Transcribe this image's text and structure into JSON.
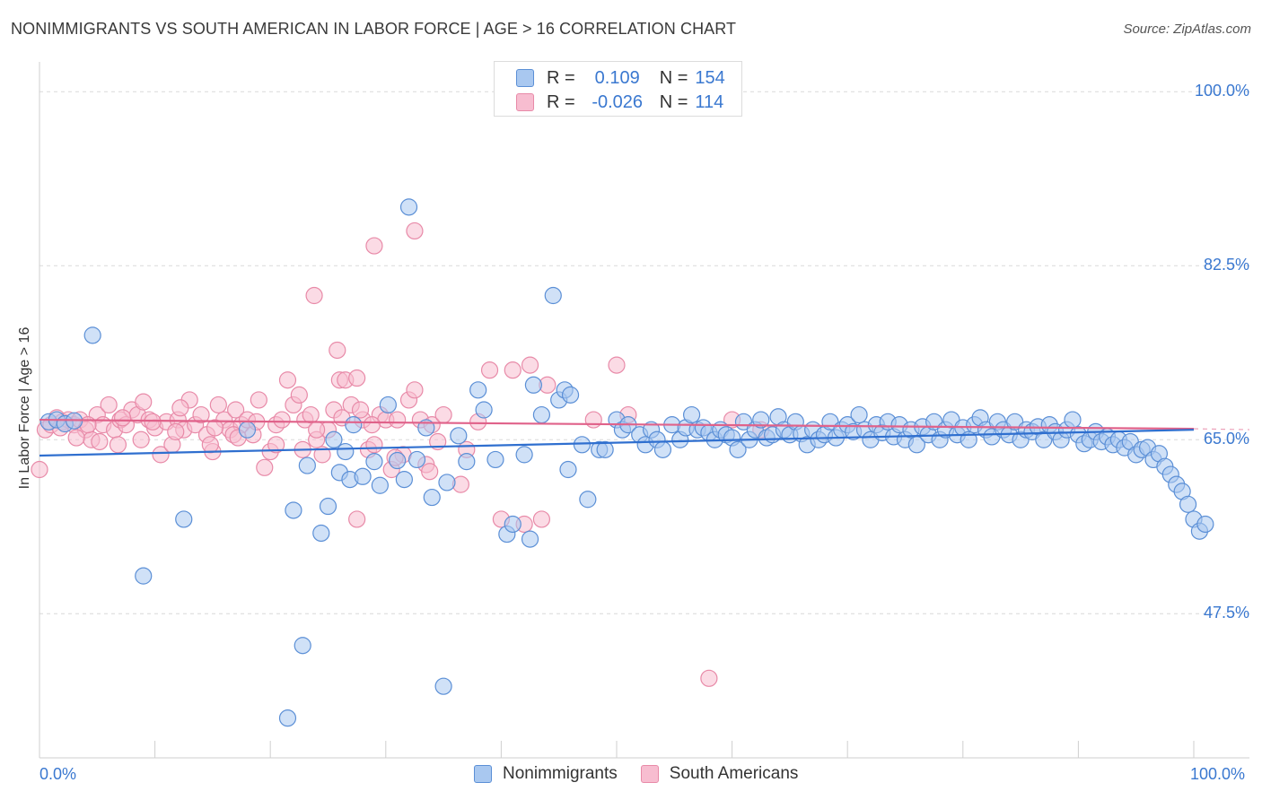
{
  "title": "NONIMMIGRANTS VS SOUTH AMERICAN IN LABOR FORCE | AGE > 16 CORRELATION CHART",
  "source": "Source: ZipAtlas.com",
  "legend": {
    "rows": [
      {
        "r_label": "R =",
        "r_value": "0.109",
        "n_label": "N =",
        "n_value": "154"
      },
      {
        "r_label": "R =",
        "r_value": "-0.026",
        "n_label": "N =",
        "n_value": "114"
      }
    ]
  },
  "bottom_legend": {
    "series_a": "Nonimmigrants",
    "series_b": "South Americans"
  },
  "colors": {
    "blue_fill": "#a9c8f0",
    "blue_stroke": "#5b8fd6",
    "blue_line": "#2f6fcf",
    "pink_fill": "#f7bdd0",
    "pink_stroke": "#e88aa8",
    "pink_line": "#e0628a",
    "tick_text": "#3a78d0",
    "grid": "#d9d9d9"
  },
  "chart_data": {
    "type": "scatter",
    "title": "NONIMMIGRANTS VS SOUTH AMERICAN IN LABOR FORCE | AGE > 16 CORRELATION CHART",
    "xlabel": "",
    "ylabel": "In Labor Force | Age > 16",
    "xlim": [
      0,
      100
    ],
    "ylim": [
      33,
      103
    ],
    "x_tick_labels": [
      "0.0%",
      "100.0%"
    ],
    "y_ticks": [
      47.5,
      65.0,
      82.5,
      100.0
    ],
    "y_tick_labels": [
      "47.5%",
      "65.0%",
      "82.5%",
      "100.0%"
    ],
    "grid": true,
    "legend_position": "top-center",
    "series": [
      {
        "name": "Nonimmigrants",
        "stats": {
          "R": 0.109,
          "N": 154
        },
        "trend": {
          "x": [
            0,
            100
          ],
          "y": [
            63.4,
            66.0
          ]
        },
        "points": [
          [
            0.8,
            66.8
          ],
          [
            1.5,
            67.0
          ],
          [
            2.2,
            66.6
          ],
          [
            3.0,
            66.9
          ],
          [
            4.6,
            75.5
          ],
          [
            9.0,
            51.3
          ],
          [
            12.5,
            57.0
          ],
          [
            21.5,
            37.0
          ],
          [
            22.0,
            57.9
          ],
          [
            22.8,
            44.3
          ],
          [
            24.4,
            55.6
          ],
          [
            25.0,
            58.3
          ],
          [
            25.5,
            65.0
          ],
          [
            26.0,
            61.7
          ],
          [
            26.5,
            63.8
          ],
          [
            26.9,
            61.0
          ],
          [
            27.2,
            66.5
          ],
          [
            28.0,
            61.3
          ],
          [
            29.0,
            62.8
          ],
          [
            29.5,
            60.4
          ],
          [
            30.2,
            68.5
          ],
          [
            31.0,
            62.9
          ],
          [
            31.6,
            61.0
          ],
          [
            32.0,
            88.4
          ],
          [
            32.7,
            63.0
          ],
          [
            34.0,
            59.2
          ],
          [
            35.0,
            40.2
          ],
          [
            35.3,
            60.7
          ],
          [
            36.3,
            65.4
          ],
          [
            37.0,
            62.8
          ],
          [
            38.0,
            70.0
          ],
          [
            38.5,
            68.0
          ],
          [
            39.5,
            63.0
          ],
          [
            40.5,
            55.5
          ],
          [
            41.0,
            56.5
          ],
          [
            42.0,
            63.5
          ],
          [
            42.5,
            55.0
          ],
          [
            42.8,
            70.5
          ],
          [
            43.5,
            67.5
          ],
          [
            44.5,
            79.5
          ],
          [
            45.0,
            69.0
          ],
          [
            45.5,
            70.0
          ],
          [
            46.0,
            69.5
          ],
          [
            47.0,
            64.5
          ],
          [
            47.5,
            59.0
          ],
          [
            48.5,
            64.0
          ],
          [
            49.0,
            64.0
          ],
          [
            50.0,
            67.0
          ],
          [
            50.5,
            66.0
          ],
          [
            51.0,
            66.5
          ],
          [
            52.0,
            65.5
          ],
          [
            52.5,
            64.5
          ],
          [
            53.0,
            66.0
          ],
          [
            53.5,
            65.0
          ],
          [
            54.0,
            64.0
          ],
          [
            54.8,
            66.5
          ],
          [
            55.5,
            65.0
          ],
          [
            56.0,
            66.2
          ],
          [
            56.5,
            67.5
          ],
          [
            57.0,
            66.0
          ],
          [
            57.5,
            66.2
          ],
          [
            58.0,
            65.7
          ],
          [
            58.5,
            65.0
          ],
          [
            59.0,
            66.0
          ],
          [
            59.5,
            65.5
          ],
          [
            60.0,
            65.2
          ],
          [
            60.5,
            64.0
          ],
          [
            61.0,
            66.8
          ],
          [
            61.5,
            65.0
          ],
          [
            62.0,
            66.0
          ],
          [
            62.5,
            67.0
          ],
          [
            63.0,
            65.2
          ],
          [
            63.5,
            65.5
          ],
          [
            64.0,
            67.3
          ],
          [
            64.5,
            66.0
          ],
          [
            65.0,
            65.5
          ],
          [
            65.5,
            66.8
          ],
          [
            66.0,
            65.6
          ],
          [
            66.5,
            64.5
          ],
          [
            67.0,
            66.0
          ],
          [
            67.5,
            65.0
          ],
          [
            68.0,
            65.5
          ],
          [
            68.5,
            66.8
          ],
          [
            69.0,
            65.2
          ],
          [
            69.5,
            66.0
          ],
          [
            70.0,
            66.5
          ],
          [
            70.5,
            65.8
          ],
          [
            71.0,
            67.5
          ],
          [
            71.5,
            66.0
          ],
          [
            72.0,
            65.0
          ],
          [
            72.5,
            66.5
          ],
          [
            73.0,
            65.7
          ],
          [
            73.5,
            66.8
          ],
          [
            74.0,
            65.3
          ],
          [
            74.5,
            66.5
          ],
          [
            75.0,
            65.0
          ],
          [
            75.5,
            66.0
          ],
          [
            76.0,
            64.5
          ],
          [
            76.5,
            66.3
          ],
          [
            77.0,
            65.5
          ],
          [
            77.5,
            66.8
          ],
          [
            78.0,
            65.0
          ],
          [
            78.5,
            66.0
          ],
          [
            79.0,
            67.0
          ],
          [
            79.5,
            65.5
          ],
          [
            80.0,
            66.2
          ],
          [
            80.5,
            65.0
          ],
          [
            81.0,
            66.5
          ],
          [
            81.5,
            67.2
          ],
          [
            82.0,
            66.0
          ],
          [
            82.5,
            65.3
          ],
          [
            83.0,
            66.8
          ],
          [
            83.5,
            66.0
          ],
          [
            84.0,
            65.5
          ],
          [
            84.5,
            66.8
          ],
          [
            85.0,
            65.0
          ],
          [
            85.5,
            66.0
          ],
          [
            86.0,
            65.8
          ],
          [
            86.5,
            66.3
          ],
          [
            87.0,
            65.0
          ],
          [
            87.5,
            66.5
          ],
          [
            88.0,
            65.8
          ],
          [
            88.5,
            65.0
          ],
          [
            89.0,
            66.0
          ],
          [
            89.5,
            67.0
          ],
          [
            90.0,
            65.5
          ],
          [
            90.5,
            64.6
          ],
          [
            91.0,
            65.0
          ],
          [
            91.5,
            65.8
          ],
          [
            92.0,
            64.8
          ],
          [
            92.5,
            65.3
          ],
          [
            93.0,
            64.5
          ],
          [
            93.5,
            65.0
          ],
          [
            94.0,
            64.2
          ],
          [
            94.5,
            64.8
          ],
          [
            95.0,
            63.5
          ],
          [
            95.5,
            64.0
          ],
          [
            96.0,
            64.2
          ],
          [
            96.5,
            63.0
          ],
          [
            97.0,
            63.6
          ],
          [
            97.5,
            62.3
          ],
          [
            98.0,
            61.5
          ],
          [
            98.5,
            60.5
          ],
          [
            99.0,
            59.8
          ],
          [
            99.5,
            58.5
          ],
          [
            100.0,
            57.0
          ],
          [
            100.5,
            55.8
          ],
          [
            101.0,
            56.5
          ],
          [
            18.0,
            66.0
          ],
          [
            33.5,
            66.2
          ],
          [
            45.8,
            62.0
          ],
          [
            23.2,
            62.4
          ]
        ]
      },
      {
        "name": "South Americans",
        "stats": {
          "R": -0.026,
          "N": 114
        },
        "trend": {
          "x": [
            0,
            100
          ],
          "y": [
            67.0,
            66.1
          ]
        },
        "points": [
          [
            0.0,
            62.0
          ],
          [
            0.5,
            66.0
          ],
          [
            1.0,
            66.5
          ],
          [
            1.5,
            67.2
          ],
          [
            2.0,
            66.8
          ],
          [
            2.5,
            67.0
          ],
          [
            3.0,
            66.5
          ],
          [
            3.5,
            67.0
          ],
          [
            4.0,
            66.0
          ],
          [
            4.5,
            65.0
          ],
          [
            5.0,
            67.5
          ],
          [
            5.5,
            66.5
          ],
          [
            6.0,
            68.5
          ],
          [
            6.5,
            66.0
          ],
          [
            7.0,
            67.0
          ],
          [
            7.5,
            66.5
          ],
          [
            8.0,
            68.0
          ],
          [
            8.5,
            67.5
          ],
          [
            9.0,
            68.8
          ],
          [
            9.5,
            67.0
          ],
          [
            10.0,
            66.2
          ],
          [
            10.5,
            63.5
          ],
          [
            11.0,
            66.8
          ],
          [
            11.5,
            64.5
          ],
          [
            12.0,
            67.0
          ],
          [
            12.5,
            66.0
          ],
          [
            13.0,
            69.0
          ],
          [
            13.5,
            66.5
          ],
          [
            14.0,
            67.5
          ],
          [
            14.5,
            65.5
          ],
          [
            15.0,
            63.8
          ],
          [
            15.5,
            68.5
          ],
          [
            16.0,
            67.0
          ],
          [
            16.5,
            66.0
          ],
          [
            17.0,
            68.0
          ],
          [
            17.5,
            66.5
          ],
          [
            18.0,
            67.0
          ],
          [
            18.5,
            65.5
          ],
          [
            19.0,
            69.0
          ],
          [
            19.5,
            62.2
          ],
          [
            20.0,
            63.8
          ],
          [
            20.5,
            66.5
          ],
          [
            21.0,
            67.0
          ],
          [
            21.5,
            71.0
          ],
          [
            22.0,
            68.5
          ],
          [
            22.5,
            69.5
          ],
          [
            23.0,
            67.0
          ],
          [
            23.5,
            67.5
          ],
          [
            24.0,
            65.0
          ],
          [
            24.5,
            63.5
          ],
          [
            25.0,
            66.0
          ],
          [
            25.5,
            68.0
          ],
          [
            25.8,
            74.0
          ],
          [
            26.0,
            71.0
          ],
          [
            26.5,
            71.0
          ],
          [
            27.0,
            68.5
          ],
          [
            27.5,
            71.2
          ],
          [
            28.0,
            67.0
          ],
          [
            28.5,
            64.0
          ],
          [
            29.0,
            64.5
          ],
          [
            29.5,
            67.5
          ],
          [
            30.0,
            67.0
          ],
          [
            30.5,
            62.0
          ],
          [
            31.0,
            67.0
          ],
          [
            31.5,
            63.5
          ],
          [
            32.0,
            69.0
          ],
          [
            32.5,
            70.0
          ],
          [
            33.0,
            67.0
          ],
          [
            33.5,
            62.5
          ],
          [
            34.0,
            66.5
          ],
          [
            34.5,
            64.8
          ],
          [
            35.0,
            67.5
          ],
          [
            23.8,
            79.5
          ],
          [
            29.0,
            84.5
          ],
          [
            32.5,
            86.0
          ],
          [
            27.5,
            57.0
          ],
          [
            39.0,
            72.0
          ],
          [
            40.0,
            57.0
          ],
          [
            41.0,
            72.0
          ],
          [
            42.5,
            72.5
          ],
          [
            44.0,
            70.5
          ],
          [
            42.0,
            56.5
          ],
          [
            38.0,
            66.8
          ],
          [
            37.0,
            64.0
          ],
          [
            48.0,
            67.0
          ],
          [
            51.0,
            67.5
          ],
          [
            60.0,
            67.0
          ],
          [
            62.5,
            66.0
          ],
          [
            58.0,
            41.0
          ],
          [
            50.0,
            72.5
          ],
          [
            24.0,
            66.0
          ],
          [
            20.5,
            64.5
          ],
          [
            36.5,
            60.5
          ],
          [
            43.5,
            57.0
          ],
          [
            1.8,
            66.2
          ],
          [
            3.2,
            65.2
          ],
          [
            6.8,
            64.5
          ],
          [
            8.8,
            65.0
          ],
          [
            11.8,
            65.8
          ],
          [
            14.8,
            64.5
          ],
          [
            16.8,
            65.5
          ],
          [
            18.8,
            66.8
          ],
          [
            22.8,
            64.0
          ],
          [
            27.8,
            68.0
          ],
          [
            30.8,
            63.2
          ],
          [
            33.8,
            61.8
          ],
          [
            28.8,
            66.5
          ],
          [
            26.2,
            67.2
          ],
          [
            9.8,
            66.8
          ],
          [
            4.2,
            66.5
          ],
          [
            5.2,
            64.8
          ],
          [
            7.2,
            67.2
          ],
          [
            12.2,
            68.2
          ],
          [
            15.2,
            66.2
          ],
          [
            17.2,
            65.2
          ]
        ]
      }
    ]
  }
}
